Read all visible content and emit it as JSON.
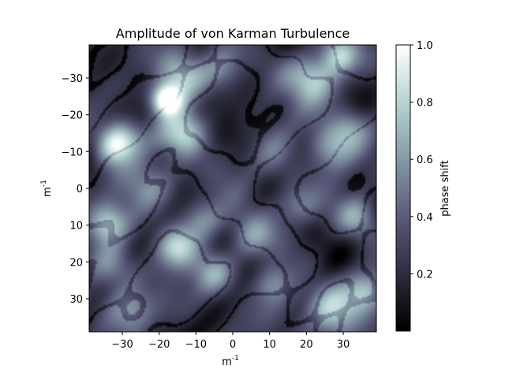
{
  "chart_data": {
    "type": "heatmap",
    "title": "Amplitude of von Karman Turbulence",
    "xlabel": "m",
    "xlabel_sup": "-1",
    "ylabel": "m",
    "ylabel_sup": "-1",
    "xlim": [
      -39,
      39
    ],
    "ylim": [
      39,
      -39
    ],
    "xticks": [
      -30,
      -20,
      -10,
      0,
      10,
      20,
      30
    ],
    "xtick_labels": [
      "−30",
      "−20",
      "−10",
      "0",
      "10",
      "20",
      "30"
    ],
    "yticks": [
      -30,
      -20,
      -10,
      0,
      10,
      20,
      30
    ],
    "ytick_labels": [
      "−30",
      "−20",
      "−10",
      "0",
      "10",
      "20",
      "30"
    ],
    "colormap": "bone",
    "colorbar": {
      "label": "phase shift",
      "range": [
        0.0,
        1.0
      ],
      "ticks": [
        0.2,
        0.4,
        0.6,
        0.8,
        1.0
      ],
      "tick_labels": [
        "0.2",
        "0.4",
        "0.6",
        "0.8",
        "1.0"
      ]
    },
    "blobs": [
      {
        "x": -18,
        "y": -24,
        "a": 0.95,
        "s": 3.0
      },
      {
        "x": -14,
        "y": -30,
        "a": 0.55,
        "s": 4.5
      },
      {
        "x": -13,
        "y": -15,
        "a": 0.6,
        "s": 4.5
      },
      {
        "x": -30,
        "y": -14,
        "a": 0.6,
        "s": 4.0
      },
      {
        "x": -33,
        "y": -11,
        "a": 0.45,
        "s": 3.5
      },
      {
        "x": -34,
        "y": 10,
        "a": 0.55,
        "s": 4.0
      },
      {
        "x": -33,
        "y": 21,
        "a": 0.45,
        "s": 4.5
      },
      {
        "x": -15,
        "y": 16,
        "a": 0.55,
        "s": 4.0
      },
      {
        "x": -8,
        "y": 9,
        "a": 0.45,
        "s": 4.0
      },
      {
        "x": -5,
        "y": 23,
        "a": 0.4,
        "s": 4.0
      },
      {
        "x": 22,
        "y": -30,
        "a": 0.55,
        "s": 5.0
      },
      {
        "x": 29,
        "y": -36,
        "a": 0.5,
        "s": 3.5
      },
      {
        "x": 26,
        "y": -12,
        "a": 0.5,
        "s": 4.5
      },
      {
        "x": 32,
        "y": -17,
        "a": 0.4,
        "s": 4.0
      },
      {
        "x": 27,
        "y": 33,
        "a": 0.6,
        "s": 5.0
      },
      {
        "x": 36,
        "y": 28,
        "a": 0.5,
        "s": 4.0
      },
      {
        "x": 11,
        "y": 26,
        "a": 0.4,
        "s": 4.0
      },
      {
        "x": 5,
        "y": 14,
        "a": 0.35,
        "s": 4.5
      },
      {
        "x": -22,
        "y": 0,
        "a": 0.35,
        "s": 5.0
      },
      {
        "x": 12,
        "y": -8,
        "a": 0.3,
        "s": 5.0
      },
      {
        "x": 34,
        "y": 8,
        "a": 0.4,
        "s": 4.0
      },
      {
        "x": -3,
        "y": -33,
        "a": 0.35,
        "s": 4.0
      },
      {
        "x": -28,
        "y": 33,
        "a": 0.4,
        "s": 4.5
      },
      {
        "x": 18,
        "y": 5,
        "a": 0.3,
        "s": 4.0
      }
    ]
  }
}
